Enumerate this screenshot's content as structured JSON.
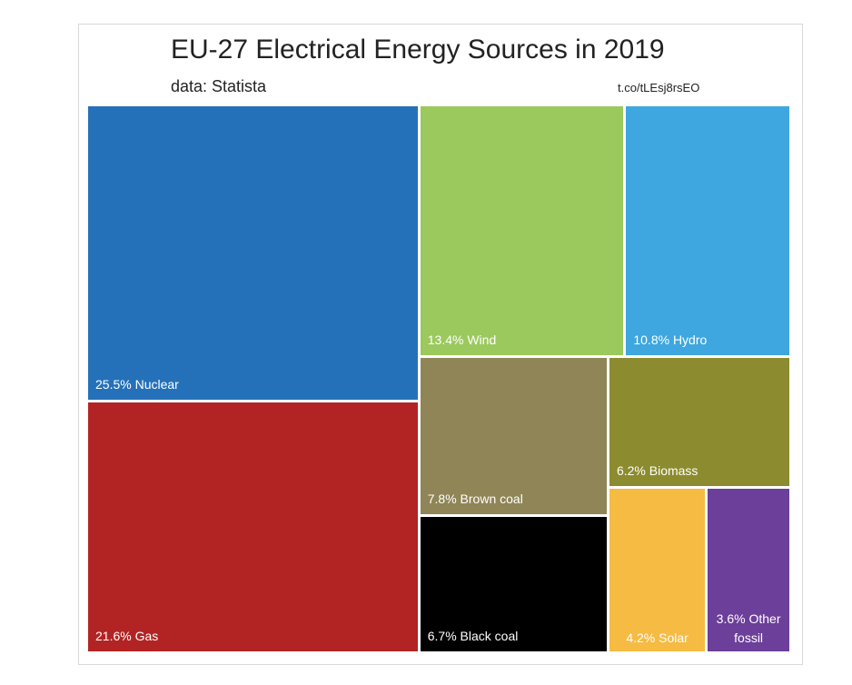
{
  "chart": {
    "title": "EU-27 Electrical Energy Sources in 2019",
    "subtitle": "data: Statista",
    "source": "t.co/tLEsj8rsEO"
  },
  "chart_data": {
    "type": "treemap",
    "title": "EU-27 Electrical Energy Sources in 2019",
    "subtitle": "data: Statista",
    "unit": "%",
    "items": [
      {
        "name": "Nuclear",
        "value": 25.5,
        "label": "25.5% Nuclear",
        "color": "#2571b9"
      },
      {
        "name": "Gas",
        "value": 21.6,
        "label": "21.6% Gas",
        "color": "#b22423"
      },
      {
        "name": "Wind",
        "value": 13.4,
        "label": "13.4% Wind",
        "color": "#9bc95d"
      },
      {
        "name": "Hydro",
        "value": 10.8,
        "label": "10.8% Hydro",
        "color": "#3ea7df"
      },
      {
        "name": "Brown coal",
        "value": 7.8,
        "label": "7.8% Brown coal",
        "color": "#8f8556"
      },
      {
        "name": "Black coal",
        "value": 6.7,
        "label": "6.7% Black coal",
        "color": "#000000"
      },
      {
        "name": "Biomass",
        "value": 6.2,
        "label": "6.2% Biomass",
        "color": "#8c8b2f"
      },
      {
        "name": "Solar",
        "value": 4.2,
        "label": "4.2% Solar",
        "color": "#f5bb43"
      },
      {
        "name": "Other fossil",
        "value": 3.6,
        "label": "3.6% Other fossil",
        "color": "#6c3f9a"
      }
    ]
  }
}
